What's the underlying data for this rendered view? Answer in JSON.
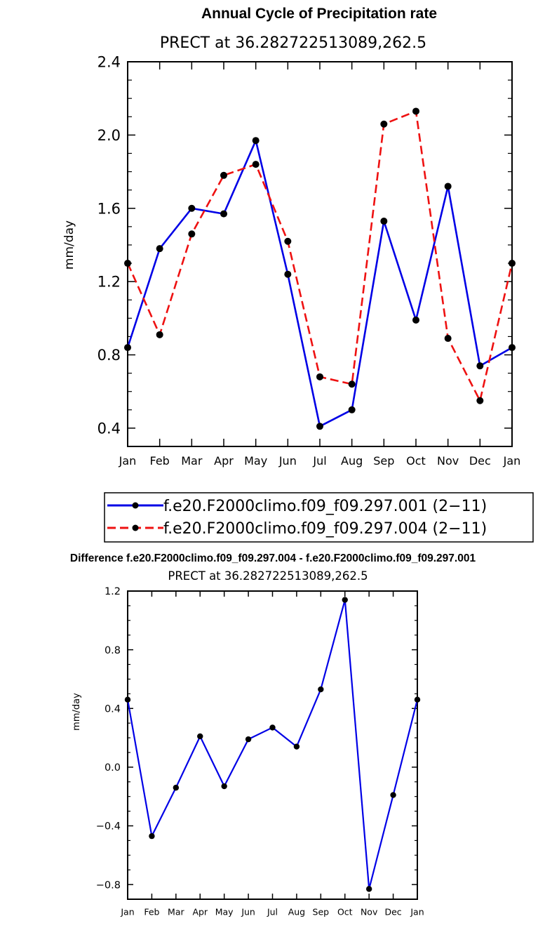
{
  "chart_data": [
    {
      "type": "line",
      "title": "Annual Cycle of Precipitation rate",
      "subtitle": "PRECT at 36.282722513089,262.5",
      "xlabel": "",
      "ylabel": "mm/day",
      "categories": [
        "Jan",
        "Feb",
        "Mar",
        "Apr",
        "May",
        "Jun",
        "Jul",
        "Aug",
        "Sep",
        "Oct",
        "Nov",
        "Dec",
        "Jan"
      ],
      "ylim": [
        0.3,
        2.4
      ],
      "yticks": [
        "0.4",
        "0.8",
        "1.2",
        "1.6",
        "2.0",
        "2.4"
      ],
      "ytick_values": [
        0.4,
        0.8,
        1.2,
        1.6,
        2.0,
        2.4
      ],
      "series": [
        {
          "name": "f.e20.F2000climo.f09_f09.297.001 (2−11)",
          "color": "#0000e6",
          "style": "solid",
          "values": [
            0.84,
            1.38,
            1.6,
            1.57,
            1.97,
            1.24,
            0.41,
            0.5,
            1.53,
            0.99,
            1.72,
            0.74,
            0.84
          ]
        },
        {
          "name": "f.e20.F2000climo.f09_f09.297.004 (2−11)",
          "color": "#ee1111",
          "style": "dashed",
          "values": [
            1.3,
            0.91,
            1.46,
            1.78,
            1.84,
            1.42,
            0.68,
            0.64,
            2.06,
            2.13,
            0.89,
            0.55,
            1.3
          ]
        }
      ],
      "legend_position": "bottom"
    },
    {
      "type": "line",
      "title": "Difference f.e20.F2000climo.f09_f09.297.004 - f.e20.F2000climo.f09_f09.297.001",
      "subtitle": "PRECT at 36.282722513089,262.5",
      "xlabel": "",
      "ylabel": "mm/day",
      "categories": [
        "Jan",
        "Feb",
        "Mar",
        "Apr",
        "May",
        "Jun",
        "Jul",
        "Aug",
        "Sep",
        "Oct",
        "Nov",
        "Dec",
        "Jan"
      ],
      "ylim": [
        -0.9,
        1.2
      ],
      "yticks": [
        "−0.8",
        "−0.4",
        "0.0",
        "0.4",
        "0.8",
        "1.2"
      ],
      "ytick_values": [
        -0.8,
        -0.4,
        0.0,
        0.4,
        0.8,
        1.2
      ],
      "series": [
        {
          "name": "difference",
          "color": "#0000e6",
          "style": "solid",
          "values": [
            0.46,
            -0.47,
            -0.14,
            0.21,
            -0.13,
            0.19,
            0.27,
            0.14,
            0.53,
            1.14,
            -0.83,
            -0.19,
            0.46
          ]
        }
      ]
    }
  ]
}
